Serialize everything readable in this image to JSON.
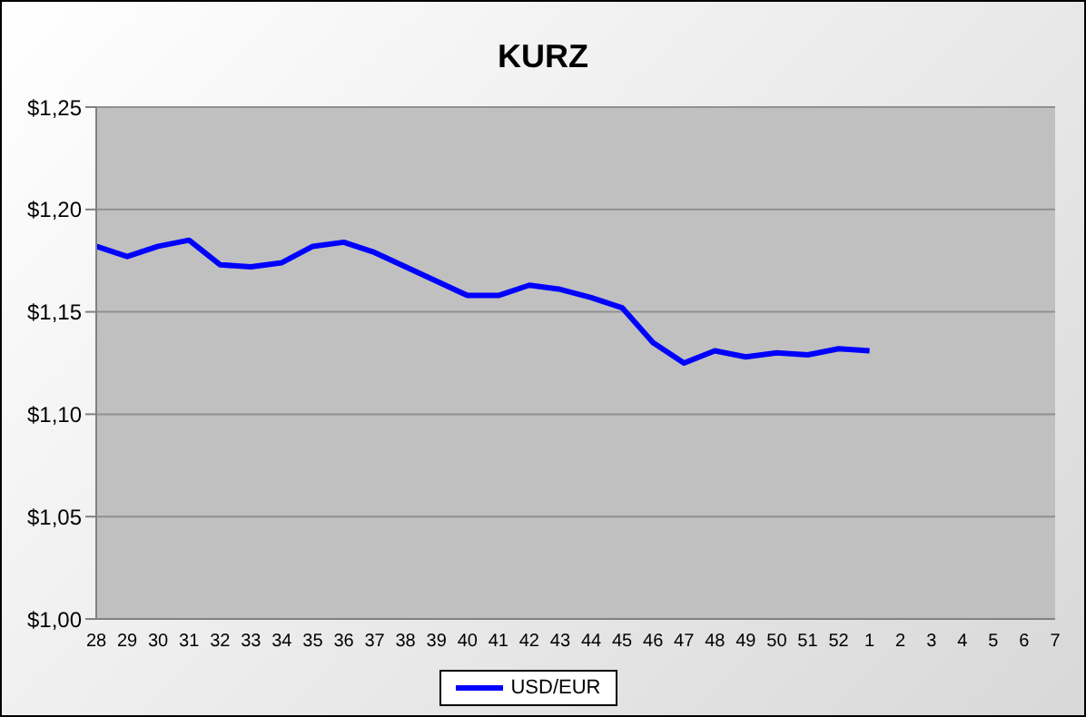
{
  "chart_data": {
    "type": "line",
    "title": "KURZ",
    "categories": [
      "28",
      "29",
      "30",
      "31",
      "32",
      "33",
      "34",
      "35",
      "36",
      "37",
      "38",
      "39",
      "40",
      "41",
      "42",
      "43",
      "44",
      "45",
      "46",
      "47",
      "48",
      "49",
      "50",
      "51",
      "52",
      "1",
      "2",
      "3",
      "4",
      "5",
      "6",
      "7"
    ],
    "series": [
      {
        "name": "USD/EUR",
        "color": "#0000ff",
        "values": [
          1.182,
          1.177,
          1.182,
          1.185,
          1.173,
          1.172,
          1.174,
          1.182,
          1.184,
          1.179,
          1.172,
          1.165,
          1.158,
          1.158,
          1.163,
          1.161,
          1.157,
          1.152,
          1.135,
          1.125,
          1.131,
          1.128,
          1.13,
          1.129,
          1.132,
          1.131,
          null,
          null,
          null,
          null,
          null,
          null
        ]
      }
    ],
    "ylim": [
      1.0,
      1.25
    ],
    "yticks": [
      {
        "value": 1.0,
        "label": "$1,00"
      },
      {
        "value": 1.05,
        "label": "$1,05"
      },
      {
        "value": 1.1,
        "label": "$1,10"
      },
      {
        "value": 1.15,
        "label": "$1,15"
      },
      {
        "value": 1.2,
        "label": "$1,20"
      },
      {
        "value": 1.25,
        "label": "$1,25"
      }
    ],
    "grid": "y",
    "legend": "bottom",
    "marker": "none",
    "line_style": "solid"
  }
}
